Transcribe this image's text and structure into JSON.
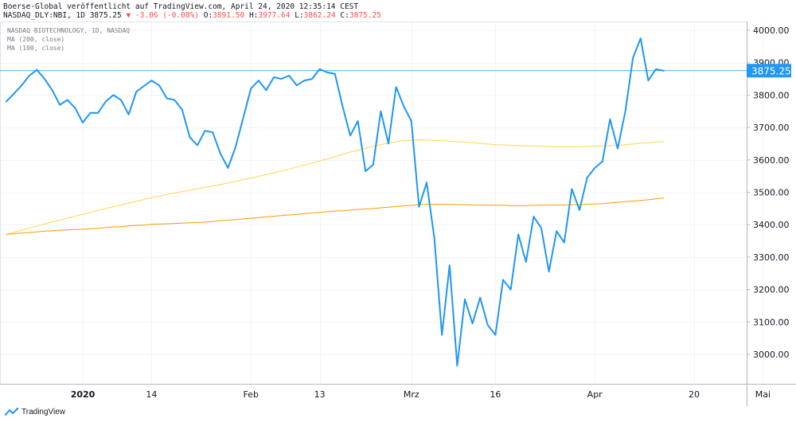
{
  "header": {
    "publisher_line": "Boerse-Global veröffentlicht auf TradingView.com, April 24, 2020 12:35:14 CEST",
    "symbol": "NASDAQ_DLY:NBI, 1D",
    "last": "3875.25",
    "change": "▼ -3.06 (-0.08%)",
    "o_label": "O:",
    "o_value": "3891.50",
    "h_label": "H:",
    "h_value": "3977.64",
    "l_label": "L:",
    "l_value": "3862.24",
    "c_label": "C:",
    "c_value": "3875.25"
  },
  "legend": {
    "instrument": "NASDAQ BIOTECHNOLOGY, 1D, NASDAQ",
    "ma200": "MA (200, close)",
    "ma100": "MA (100, close)"
  },
  "branding": {
    "logo_text": "TradingView"
  },
  "colors": {
    "price": "#2196f3",
    "ma200": "#ffd54f",
    "ma100": "#ff9800",
    "grid": "#f0f3fa",
    "last_label_bg": "#2196f3"
  },
  "chart_data": {
    "type": "line",
    "ylim": [
      2925,
      4060
    ],
    "y_ticks": [
      3000,
      3100,
      3200,
      3300,
      3400,
      3500,
      3600,
      3700,
      3800,
      3900,
      4000
    ],
    "y_tick_labels": [
      "3000.00",
      "3100.00",
      "3200.00",
      "3300.00",
      "3400.00",
      "3500.00",
      "3600.00",
      "3700.00",
      "3800.00",
      "3900.00",
      "4000.00"
    ],
    "last_value": 3875.25,
    "last_value_label": "3875.25",
    "x_ticks": [
      {
        "index": 10,
        "label": "2020"
      },
      {
        "index": 19,
        "label": "14"
      },
      {
        "index": 32,
        "label": "Feb"
      },
      {
        "index": 41,
        "label": "13"
      },
      {
        "index": 53,
        "label": "Mrz"
      },
      {
        "index": 64,
        "label": "16"
      },
      {
        "index": 77,
        "label": "Apr"
      },
      {
        "index": 90,
        "label": "20"
      },
      {
        "index": 99,
        "label": "Mai"
      }
    ],
    "series": [
      {
        "key": "price",
        "values": [
          3780,
          3805,
          3830,
          3860,
          3878,
          3850,
          3815,
          3770,
          3785,
          3760,
          3715,
          3745,
          3745,
          3780,
          3800,
          3785,
          3740,
          3810,
          3828,
          3845,
          3830,
          3790,
          3785,
          3755,
          3670,
          3645,
          3690,
          3685,
          3620,
          3575,
          3640,
          3730,
          3820,
          3845,
          3815,
          3855,
          3850,
          3860,
          3830,
          3845,
          3850,
          3880,
          3870,
          3865,
          3765,
          3675,
          3720,
          3565,
          3585,
          3750,
          3650,
          3825,
          3765,
          3720,
          3455,
          3530,
          3360,
          3060,
          3275,
          2965,
          3170,
          3095,
          3175,
          3090,
          3060,
          3230,
          3200,
          3370,
          3285,
          3425,
          3390,
          3255,
          3380,
          3345,
          3510,
          3445,
          3545,
          3575,
          3595,
          3725,
          3635,
          3750,
          3915,
          3975,
          3845,
          3880,
          3875
        ]
      },
      {
        "key": "ma200",
        "values": [
          3370,
          3377,
          3383,
          3390,
          3396,
          3402,
          3408,
          3414,
          3420,
          3426,
          3432,
          3438,
          3444,
          3450,
          3455,
          3461,
          3467,
          3472,
          3478,
          3483,
          3488,
          3493,
          3498,
          3502,
          3507,
          3511,
          3515,
          3520,
          3524,
          3529,
          3534,
          3539,
          3544,
          3549,
          3555,
          3560,
          3566,
          3572,
          3578,
          3584,
          3590,
          3597,
          3603,
          3610,
          3617,
          3624,
          3630,
          3636,
          3642,
          3647,
          3652,
          3656,
          3659,
          3661,
          3662,
          3661,
          3660,
          3659,
          3658,
          3656,
          3655,
          3653,
          3651,
          3649,
          3647,
          3646,
          3645,
          3644,
          3643,
          3643,
          3642,
          3642,
          3641,
          3641,
          3641,
          3641,
          3642,
          3642,
          3643,
          3644,
          3645,
          3647,
          3649,
          3651,
          3653,
          3655,
          3657
        ]
      },
      {
        "key": "ma100",
        "values": [
          3370,
          3372,
          3374,
          3376,
          3378,
          3380,
          3381,
          3383,
          3384,
          3385,
          3386,
          3388,
          3389,
          3391,
          3393,
          3394,
          3396,
          3398,
          3399,
          3401,
          3402,
          3403,
          3404,
          3405,
          3406,
          3407,
          3408,
          3410,
          3412,
          3414,
          3416,
          3418,
          3420,
          3422,
          3424,
          3426,
          3428,
          3430,
          3432,
          3434,
          3436,
          3438,
          3440,
          3442,
          3443,
          3445,
          3447,
          3449,
          3450,
          3452,
          3454,
          3456,
          3458,
          3460,
          3462,
          3463,
          3463,
          3463,
          3463,
          3462,
          3462,
          3461,
          3461,
          3460,
          3460,
          3460,
          3459,
          3459,
          3459,
          3460,
          3460,
          3461,
          3461,
          3461,
          3462,
          3462,
          3463,
          3464,
          3465,
          3467,
          3469,
          3471,
          3473,
          3475,
          3477,
          3480,
          3482
        ]
      }
    ]
  }
}
